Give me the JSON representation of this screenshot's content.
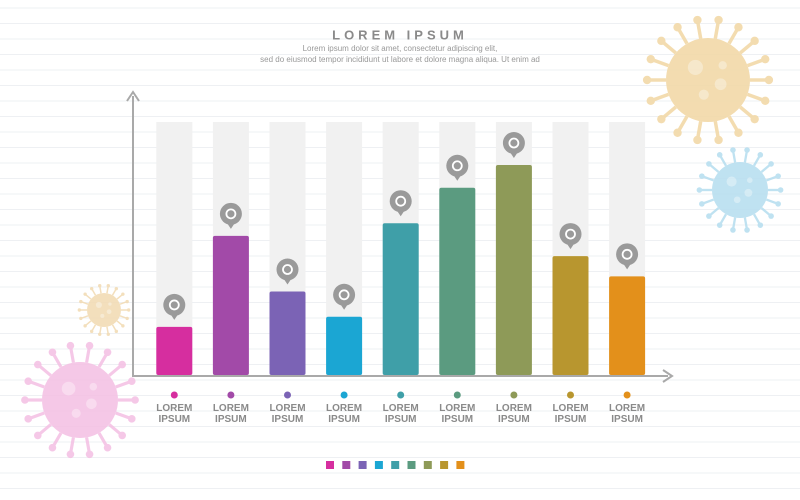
{
  "chart_data": {
    "type": "bar",
    "title": "LOREM IPSUM",
    "subtitle": [
      "Lorem ipsum dolor sit amet, consectetur adipiscing elit,",
      "sed do eiusmod tempor incididunt ut labore et dolore magna aliqua. Ut enim ad"
    ],
    "categories": [
      "LOREM IPSUM",
      "LOREM IPSUM",
      "LOREM IPSUM",
      "LOREM IPSUM",
      "LOREM IPSUM",
      "LOREM IPSUM",
      "LOREM IPSUM",
      "LOREM IPSUM",
      "LOREM IPSUM"
    ],
    "values": [
      19,
      55,
      33,
      23,
      60,
      74,
      83,
      47,
      39
    ],
    "colors": [
      "#d62e9f",
      "#a24aa8",
      "#7b63b5",
      "#1ba6d3",
      "#3f9fa8",
      "#5b9b80",
      "#8e9a58",
      "#b8962f",
      "#e3901b"
    ],
    "ylim": [
      0,
      100
    ]
  }
}
